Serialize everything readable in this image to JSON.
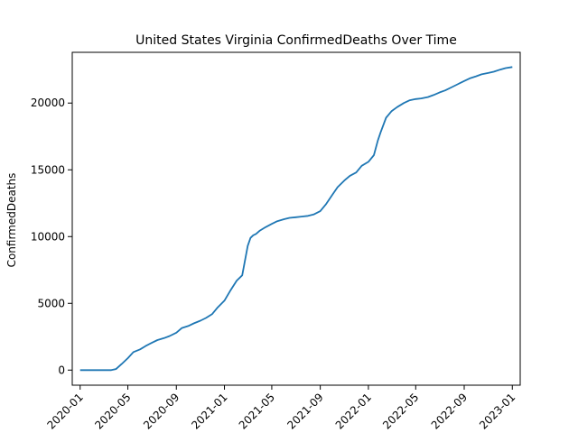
{
  "chart_data": {
    "type": "line",
    "title": "United States Virginia ConfirmedDeaths Over Time",
    "xlabel": "",
    "ylabel": "ConfirmedDeaths",
    "xlim": [
      "2019-12-12",
      "2023-01-21"
    ],
    "ylim": [
      -1130,
      23800
    ],
    "x_ticks": [
      "2020-01",
      "2020-05",
      "2020-09",
      "2021-01",
      "2021-05",
      "2021-09",
      "2022-01",
      "2022-05",
      "2022-09",
      "2023-01"
    ],
    "y_ticks": [
      0,
      5000,
      10000,
      15000,
      20000
    ],
    "y_tick_labels": [
      "0",
      "5000",
      "10000",
      "15000",
      "20000"
    ],
    "grid": false,
    "legend": "none",
    "series": [
      {
        "color": "#1f77b4",
        "x": [
          "2020-01-01",
          "2020-02-15",
          "2020-03-20",
          "2020-04-01",
          "2020-04-15",
          "2020-05-01",
          "2020-05-15",
          "2020-06-01",
          "2020-06-15",
          "2020-07-01",
          "2020-07-15",
          "2020-08-01",
          "2020-08-15",
          "2020-09-01",
          "2020-09-15",
          "2020-10-01",
          "2020-10-15",
          "2020-11-01",
          "2020-11-15",
          "2020-12-01",
          "2020-12-15",
          "2021-01-01",
          "2021-01-15",
          "2021-02-01",
          "2021-02-15",
          "2021-03-01",
          "2021-03-08",
          "2021-03-15",
          "2021-03-22",
          "2021-04-01",
          "2021-04-15",
          "2021-05-01",
          "2021-05-15",
          "2021-06-01",
          "2021-06-15",
          "2021-07-01",
          "2021-07-15",
          "2021-08-01",
          "2021-08-15",
          "2021-09-01",
          "2021-09-15",
          "2021-10-01",
          "2021-10-15",
          "2021-11-01",
          "2021-11-15",
          "2021-12-01",
          "2021-12-15",
          "2022-01-01",
          "2022-01-15",
          "2022-01-25",
          "2022-02-01",
          "2022-02-15",
          "2022-03-01",
          "2022-03-15",
          "2022-04-01",
          "2022-04-15",
          "2022-05-01",
          "2022-05-15",
          "2022-06-01",
          "2022-06-15",
          "2022-07-01",
          "2022-07-15",
          "2022-08-01",
          "2022-08-15",
          "2022-09-01",
          "2022-09-15",
          "2022-10-01",
          "2022-10-15",
          "2022-11-01",
          "2022-11-15",
          "2022-12-01",
          "2022-12-15",
          "2023-01-01"
        ],
        "values": [
          0,
          0,
          0,
          80,
          450,
          900,
          1350,
          1550,
          1800,
          2050,
          2250,
          2400,
          2550,
          2800,
          3150,
          3300,
          3500,
          3700,
          3900,
          4200,
          4700,
          5200,
          5900,
          6700,
          7100,
          9300,
          9900,
          10100,
          10200,
          10450,
          10700,
          10950,
          11150,
          11300,
          11400,
          11450,
          11500,
          11550,
          11650,
          11900,
          12400,
          13100,
          13700,
          14200,
          14550,
          14800,
          15300,
          15600,
          16100,
          17200,
          17800,
          18900,
          19400,
          19700,
          20000,
          20200,
          20300,
          20350,
          20450,
          20600,
          20800,
          20950,
          21200,
          21400,
          21650,
          21850,
          22000,
          22150,
          22250,
          22350,
          22500,
          22620,
          22700
        ]
      }
    ]
  }
}
